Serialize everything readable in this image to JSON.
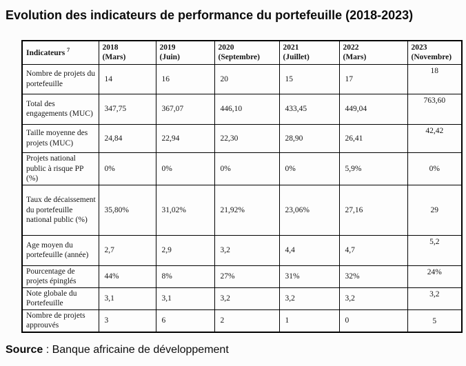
{
  "page": {
    "title": "Evolution des indicateurs de performance du portefeuille (2018-2023)",
    "source_label": "Source",
    "source_text": " : Banque africaine de développement"
  },
  "table": {
    "header": {
      "indicator_label": "Indicateurs ",
      "indicator_footnote": "7",
      "columns": [
        "2018\n(Mars)",
        "2019\n(Juin)",
        "2020\n(Septembre)",
        "2021\n(Juillet)",
        "2022\n(Mars)",
        "2023\n(Novembre)"
      ]
    },
    "rows": [
      {
        "label": "Nombre de projets du portefeuille",
        "values": [
          "14",
          "16",
          "20",
          "15",
          "17",
          "18"
        ]
      },
      {
        "label": "Total des engagements (MUC)",
        "values": [
          "347,75",
          "367,07",
          "446,10",
          "433,45",
          "449,04",
          "763,60"
        ]
      },
      {
        "label": "Taille moyenne des projets (MUC)",
        "values": [
          "24,84",
          "22,94",
          "22,30",
          "28,90",
          "26,41",
          "42,42"
        ]
      },
      {
        "label": "Projets national public à risque PP (%)",
        "values": [
          "0%",
          "0%",
          "0%",
          "0%",
          "5,9%",
          "0%"
        ]
      },
      {
        "label": "Taux de décaissement du portefeuille national public (%)",
        "values": [
          "35,80%",
          "31,02%",
          "21,92%",
          "23,06%",
          "27,16",
          "29"
        ]
      },
      {
        "label": "Age moyen du portefeuille (année)",
        "values": [
          "2,7",
          "2,9",
          "3,2",
          "4,4",
          "4,7",
          "5,2"
        ]
      },
      {
        "label": "Pourcentage de projets épinglés",
        "values": [
          "44%",
          "8%",
          "27%",
          "31%",
          "32%",
          "24%"
        ]
      },
      {
        "label": "Note globale du Portefeuille",
        "values": [
          "3,1",
          "3,1",
          "3,2",
          "3,2",
          "3,2",
          "3,2"
        ]
      },
      {
        "label": "Nombre de projets approuvés",
        "values": [
          "3",
          "6",
          "2",
          "1",
          "0",
          "5"
        ]
      }
    ]
  }
}
